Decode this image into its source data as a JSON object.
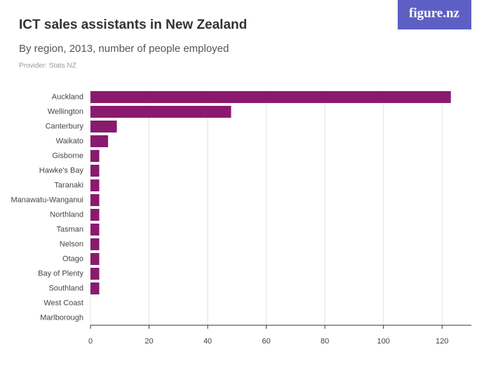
{
  "chart_data": {
    "type": "bar",
    "orientation": "horizontal",
    "title": "ICT sales assistants in New Zealand",
    "subtitle": "By region, 2013, number of people employed",
    "provider": "Provider: Stats NZ",
    "logo": "figure.nz",
    "categories": [
      "Auckland",
      "Wellington",
      "Canterbury",
      "Waikato",
      "Gisborne",
      "Hawke's Bay",
      "Taranaki",
      "Manawatu-Wanganui",
      "Northland",
      "Tasman",
      "Nelson",
      "Otago",
      "Bay of Plenty",
      "Southland",
      "West Coast",
      "Marlborough"
    ],
    "values": [
      123,
      48,
      9,
      6,
      3,
      3,
      3,
      3,
      3,
      3,
      3,
      3,
      3,
      3,
      0,
      0
    ],
    "color": "#8a1a6e",
    "xlim": [
      0,
      130
    ],
    "xticks": [
      0,
      20,
      40,
      60,
      80,
      100,
      120
    ],
    "grid": true
  }
}
